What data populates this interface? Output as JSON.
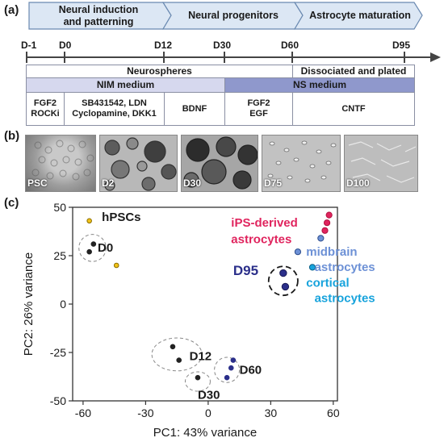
{
  "panels": {
    "a": "(a)",
    "b": "(b)",
    "c": "(c)"
  },
  "stages": [
    {
      "line1": "Neural induction",
      "line2": "and patterning"
    },
    {
      "line1": "Neural progenitors",
      "line2": ""
    },
    {
      "line1": "Astrocyte maturation",
      "line2": ""
    }
  ],
  "timeline_days": [
    "D-1",
    "D0",
    "D12",
    "D30",
    "D60",
    "D95"
  ],
  "culture_rows": {
    "neurospheres": "Neurospheres",
    "dissociated": "Dissociated and plated",
    "nim_medium": "NIM medium",
    "ns_medium": "NS medium"
  },
  "factors": [
    {
      "line1": "FGF2",
      "line2": "ROCKi"
    },
    {
      "line1": "SB431542, LDN",
      "line2": "Cyclopamine, DKK1"
    },
    {
      "line1": "BDNF",
      "line2": ""
    },
    {
      "line1": "FGF2",
      "line2": "EGF"
    },
    {
      "line1": "CNTF",
      "line2": ""
    }
  ],
  "micrographs": [
    "PSC",
    "D2",
    "D30",
    "D75",
    "D100"
  ],
  "colors": {
    "stage_arrow_fill": "#dce7f4",
    "stage_arrow_stroke": "#6a89b0",
    "nim_fill": "#d6d8ee",
    "ns_fill": "#8f98cc",
    "hpsc": "#f2c318",
    "day_points": "#222222",
    "d95_points": "#2b2f8a",
    "ips": "#e0245e",
    "midbrain": "#6d91d6",
    "cortical": "#17a3dc"
  },
  "chart_data": {
    "type": "scatter",
    "xlabel": "PC1: 43% variance",
    "ylabel": "PC2: 26% variance",
    "xlim": [
      -65,
      62
    ],
    "ylim": [
      -50,
      50
    ],
    "xticks": [
      -60,
      -30,
      0,
      30,
      60
    ],
    "yticks": [
      50,
      25,
      0,
      -25,
      -50
    ],
    "series": [
      {
        "name": "hPSCs",
        "color": "#f2c318",
        "stroke": "#8a6d00",
        "points": [
          [
            -57,
            43
          ],
          [
            -44,
            20
          ]
        ]
      },
      {
        "name": "D0",
        "color": "#222222",
        "stroke": "#222222",
        "points": [
          [
            -55,
            31
          ],
          [
            -57,
            27
          ]
        ]
      },
      {
        "name": "D12",
        "color": "#222222",
        "stroke": "#222222",
        "points": [
          [
            -17,
            -22
          ],
          [
            -14,
            -29
          ]
        ]
      },
      {
        "name": "D30",
        "color": "#222222",
        "stroke": "#222222",
        "points": [
          [
            -5,
            -38
          ]
        ]
      },
      {
        "name": "D60",
        "color": "#2b2f8a",
        "stroke": "#2b2f8a",
        "points": [
          [
            11,
            -33
          ],
          [
            9,
            -38
          ],
          [
            12,
            -29
          ]
        ]
      },
      {
        "name": "D95",
        "color": "#2b2f8a",
        "stroke": "#1a1a55",
        "points": [
          [
            36,
            16
          ],
          [
            37,
            9
          ]
        ]
      },
      {
        "name": "iPS-derived astrocytes",
        "color": "#e0245e",
        "stroke": "#b0103e",
        "points": [
          [
            58,
            46
          ],
          [
            57,
            42
          ],
          [
            56,
            38
          ]
        ]
      },
      {
        "name": "midbrain astrocytes",
        "color": "#6d91d6",
        "stroke": "#2c4c8c",
        "points": [
          [
            43,
            27
          ],
          [
            54,
            34
          ]
        ]
      },
      {
        "name": "cortical astrocytes",
        "color": "#17a3dc",
        "stroke": "#0a5f85",
        "points": [
          [
            50,
            19
          ]
        ]
      }
    ],
    "labels": [
      {
        "text": "hPSCs",
        "x": -51,
        "y": 43,
        "color": "#1a1a1a",
        "size": 15
      },
      {
        "text": "D0",
        "x": -53,
        "y": 27,
        "color": "#1a1a1a",
        "size": 15
      },
      {
        "text": "D12",
        "x": -9,
        "y": -29,
        "color": "#1a1a1a",
        "size": 15
      },
      {
        "text": "D60",
        "x": 15,
        "y": -36,
        "color": "#1a1a1a",
        "size": 15
      },
      {
        "text": "D30",
        "x": -5,
        "y": -49,
        "color": "#1a1a1a",
        "size": 15
      },
      {
        "text": "D95",
        "x": 12,
        "y": 15,
        "color": "#2b2f8a",
        "size": 17
      },
      {
        "text": "iPS-derived",
        "x": 11,
        "y": 40,
        "color": "#e0245e",
        "size": 15
      },
      {
        "text": "astrocytes",
        "x": 11,
        "y": 31.5,
        "color": "#e0245e",
        "size": 15
      },
      {
        "text": "midbrain",
        "x": 47,
        "y": 25,
        "color": "#6d91d6",
        "size": 15
      },
      {
        "text": "astrocytes",
        "x": 51,
        "y": 17,
        "color": "#6d91d6",
        "size": 15
      },
      {
        "text": "cortical",
        "x": 47,
        "y": 9,
        "color": "#17a3dc",
        "size": 15
      },
      {
        "text": "astrocytes",
        "x": 51,
        "y": 1,
        "color": "#17a3dc",
        "size": 15
      }
    ],
    "clusters": [
      {
        "cx": -55.5,
        "cy": 29,
        "rx": 6.5,
        "ry": 7,
        "dash": "4,3",
        "color": "#888888"
      },
      {
        "cx": -15,
        "cy": -26,
        "rx": 12,
        "ry": 8.5,
        "dash": "4,3",
        "color": "#888888"
      },
      {
        "cx": -5,
        "cy": -40,
        "rx": 6,
        "ry": 5,
        "dash": "4,3",
        "color": "#888888"
      },
      {
        "cx": 9,
        "cy": -34,
        "rx": 6,
        "ry": 6.5,
        "dash": "4,3",
        "color": "#888888"
      },
      {
        "cx": 36,
        "cy": 12,
        "rx": 7,
        "ry": 7.5,
        "dash": "7,4",
        "color": "#1a1a1a"
      }
    ]
  }
}
